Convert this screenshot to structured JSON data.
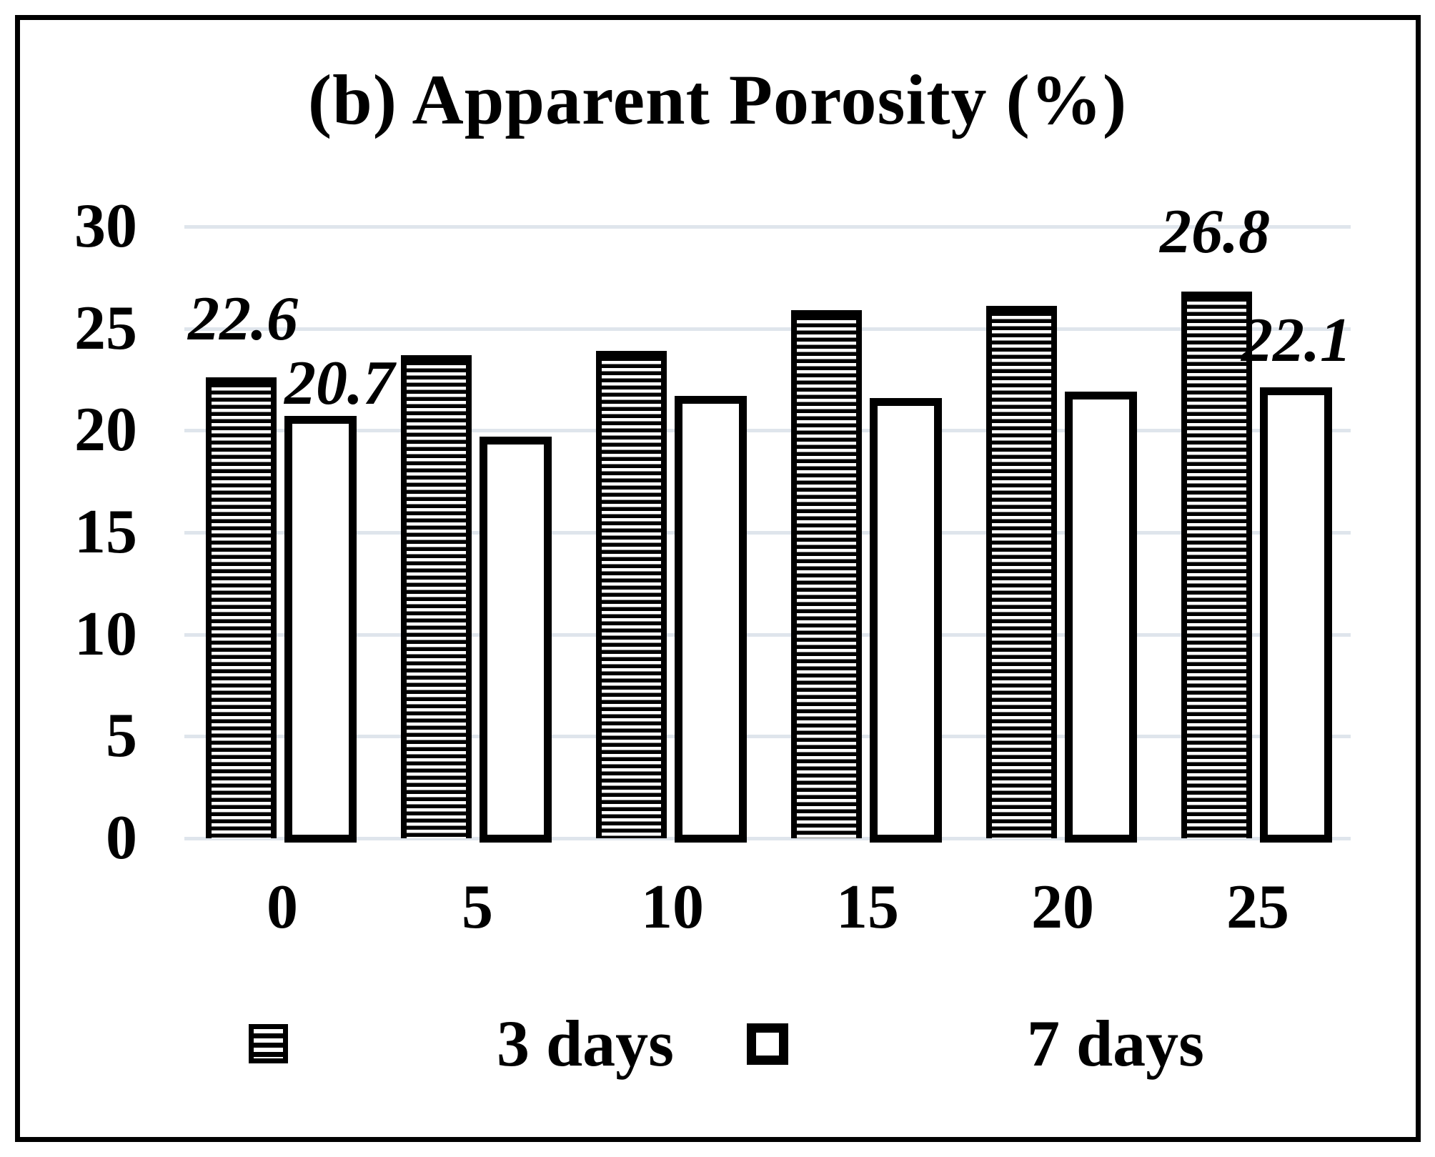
{
  "figure": {
    "title": "(b) Apparent Porosity (%)"
  },
  "chart_data": {
    "type": "bar",
    "title": "(b) Apparent Porosity (%)",
    "categories": [
      "0",
      "5",
      "10",
      "15",
      "20",
      "25"
    ],
    "series": [
      {
        "name": "3 days",
        "style": "striped",
        "values": [
          22.6,
          23.7,
          23.9,
          25.9,
          26.1,
          26.8
        ],
        "labels": [
          "22.6",
          null,
          null,
          null,
          null,
          "26.8"
        ]
      },
      {
        "name": "7 days",
        "style": "hollow",
        "values": [
          20.7,
          19.7,
          21.7,
          21.6,
          21.9,
          22.1
        ],
        "labels": [
          "20.7",
          null,
          null,
          null,
          null,
          "22.1"
        ]
      }
    ],
    "ylim": [
      0,
      30
    ],
    "yticks": [
      0,
      5,
      10,
      15,
      20,
      25,
      30
    ],
    "ytick_step": 5,
    "grid": true,
    "legend_position": "bottom",
    "colors": {
      "bar": "#000000",
      "gridline": "#dfe5ec",
      "background": "#ffffff",
      "text": "#000000"
    }
  },
  "legend": {
    "items": [
      {
        "label": "3 days",
        "swatch": "striped"
      },
      {
        "label": "7 days",
        "swatch": "hollow"
      }
    ]
  }
}
